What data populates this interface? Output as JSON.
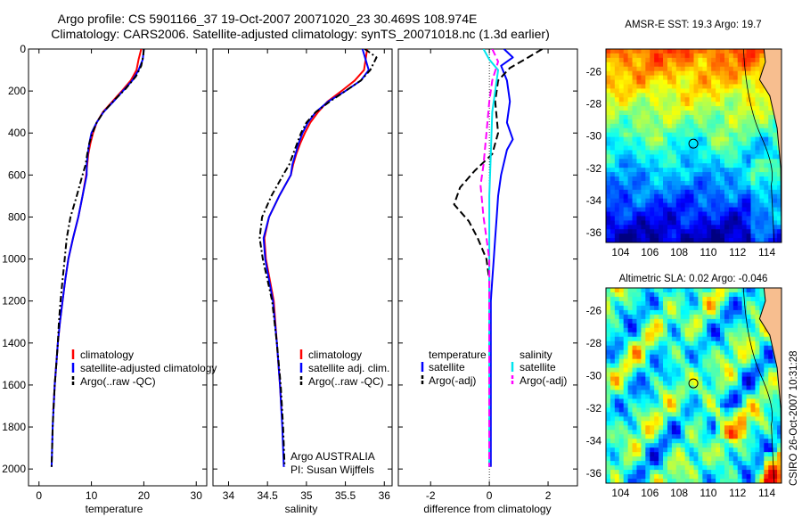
{
  "figure": {
    "title_line1": "Argo profile: CS 5901166_37 19-Oct-2007 20071020_23 30.469S 108.974E",
    "title_line2": "Climatology: CARS2006. Satellite-adjusted climatology: synTS_20071018.nc (1.3d earlier)",
    "credit": "Argo AUSTRALIA",
    "pi": "PI: Susan Wijffels",
    "stamp": "CSIRO 26-Oct-2007 10:31:28"
  },
  "colors": {
    "climatology": "#ff0000",
    "satellite": "#0000ff",
    "argo": "#000000",
    "sat_salinity": "#00e5ee",
    "argo_salinity": "#ff00ff"
  },
  "chart_data": [
    {
      "type": "line",
      "panel": "temperature",
      "xlabel": "temperature",
      "ylabel": "",
      "xlim": [
        -2,
        32
      ],
      "ylim": [
        2080,
        0
      ],
      "xticks": [
        "0",
        "10",
        "20",
        "30"
      ],
      "yticks": [
        "0",
        "200",
        "400",
        "600",
        "800",
        "1000",
        "1200",
        "1400",
        "1600",
        "1800",
        "2000"
      ],
      "legend": [
        "climatology",
        "satellite-adjusted climatology",
        "Argo(..raw -QC)"
      ],
      "series": [
        {
          "name": "climatology",
          "color": "#ff0000",
          "points": [
            [
              19.5,
              0
            ],
            [
              19.0,
              50
            ],
            [
              18.6,
              100
            ],
            [
              17.5,
              150
            ],
            [
              15.8,
              200
            ],
            [
              14.0,
              250
            ],
            [
              12.2,
              300
            ],
            [
              11.0,
              350
            ],
            [
              10.3,
              400
            ],
            [
              9.8,
              450
            ],
            [
              9.4,
              500
            ],
            [
              9.2,
              550
            ],
            [
              9.0,
              600
            ],
            [
              8.3,
              700
            ],
            [
              7.5,
              800
            ],
            [
              6.5,
              900
            ],
            [
              5.6,
              1000
            ],
            [
              5.0,
              1100
            ],
            [
              4.5,
              1200
            ],
            [
              4.0,
              1300
            ],
            [
              3.6,
              1400
            ],
            [
              3.3,
              1500
            ],
            [
              3.0,
              1600
            ],
            [
              2.8,
              1700
            ],
            [
              2.7,
              1720
            ]
          ]
        },
        {
          "name": "satellite-adjusted climatology",
          "color": "#0000ff",
          "points": [
            [
              20.0,
              0
            ],
            [
              19.8,
              50
            ],
            [
              19.0,
              100
            ],
            [
              17.8,
              150
            ],
            [
              16.0,
              200
            ],
            [
              14.2,
              250
            ],
            [
              12.3,
              300
            ],
            [
              11.0,
              350
            ],
            [
              10.0,
              400
            ],
            [
              9.6,
              450
            ],
            [
              9.3,
              500
            ],
            [
              9.1,
              550
            ],
            [
              9.1,
              600
            ],
            [
              8.3,
              700
            ],
            [
              7.5,
              800
            ],
            [
              6.5,
              900
            ],
            [
              5.6,
              1000
            ],
            [
              5.0,
              1100
            ],
            [
              4.5,
              1200
            ],
            [
              4.0,
              1300
            ],
            [
              3.6,
              1400
            ],
            [
              3.3,
              1500
            ],
            [
              3.0,
              1600
            ],
            [
              2.8,
              1700
            ],
            [
              2.6,
              1800
            ],
            [
              2.5,
              1900
            ],
            [
              2.4,
              1990
            ]
          ]
        },
        {
          "name": "Argo(..raw -QC)",
          "color": "#000000",
          "dash": "7,3,2,3",
          "points": [
            [
              20.0,
              0
            ],
            [
              19.9,
              30
            ],
            [
              19.5,
              80
            ],
            [
              18.5,
              130
            ],
            [
              16.5,
              190
            ],
            [
              14.5,
              240
            ],
            [
              12.3,
              300
            ],
            [
              11.0,
              350
            ],
            [
              10.2,
              400
            ],
            [
              9.6,
              450
            ],
            [
              9.2,
              500
            ],
            [
              8.9,
              550
            ],
            [
              8.3,
              600
            ],
            [
              7.2,
              700
            ],
            [
              6.0,
              800
            ],
            [
              5.3,
              900
            ],
            [
              4.9,
              1000
            ],
            [
              4.5,
              1100
            ],
            [
              4.1,
              1200
            ],
            [
              3.8,
              1300
            ],
            [
              3.6,
              1400
            ],
            [
              3.3,
              1500
            ],
            [
              3.0,
              1600
            ],
            [
              2.8,
              1700
            ],
            [
              2.6,
              1800
            ],
            [
              2.5,
              1900
            ],
            [
              2.4,
              1990
            ]
          ]
        }
      ]
    },
    {
      "type": "line",
      "panel": "salinity",
      "xlabel": "salinity",
      "ylabel": "",
      "xlim": [
        33.8,
        36.1
      ],
      "ylim": [
        2080,
        0
      ],
      "xticks": [
        "34",
        "34.5",
        "35",
        "35.5",
        "36"
      ],
      "yticks": [],
      "legend": [
        "climatology",
        "satellite adj. clim.",
        "Argo(..raw -QC)"
      ],
      "series": [
        {
          "name": "climatology",
          "color": "#ff0000",
          "points": [
            [
              35.78,
              0
            ],
            [
              35.76,
              50
            ],
            [
              35.74,
              100
            ],
            [
              35.62,
              150
            ],
            [
              35.45,
              200
            ],
            [
              35.27,
              250
            ],
            [
              35.15,
              300
            ],
            [
              35.05,
              350
            ],
            [
              34.98,
              400
            ],
            [
              34.92,
              450
            ],
            [
              34.87,
              500
            ],
            [
              34.83,
              550
            ],
            [
              34.8,
              600
            ],
            [
              34.65,
              700
            ],
            [
              34.52,
              800
            ],
            [
              34.46,
              900
            ],
            [
              34.48,
              1000
            ],
            [
              34.53,
              1100
            ],
            [
              34.58,
              1200
            ],
            [
              34.62,
              1400
            ],
            [
              34.66,
              1600
            ],
            [
              34.68,
              1720
            ]
          ]
        },
        {
          "name": "satellite adj. clim.",
          "color": "#0000ff",
          "points": [
            [
              35.72,
              0
            ],
            [
              35.76,
              50
            ],
            [
              35.8,
              100
            ],
            [
              35.7,
              150
            ],
            [
              35.5,
              200
            ],
            [
              35.28,
              250
            ],
            [
              35.12,
              300
            ],
            [
              35.02,
              350
            ],
            [
              34.95,
              400
            ],
            [
              34.9,
              450
            ],
            [
              34.86,
              500
            ],
            [
              34.82,
              550
            ],
            [
              34.8,
              600
            ],
            [
              34.65,
              700
            ],
            [
              34.52,
              800
            ],
            [
              34.45,
              900
            ],
            [
              34.47,
              1000
            ],
            [
              34.52,
              1100
            ],
            [
              34.57,
              1200
            ],
            [
              34.62,
              1400
            ],
            [
              34.66,
              1600
            ],
            [
              34.69,
              1800
            ],
            [
              34.71,
              1990
            ]
          ]
        },
        {
          "name": "Argo(..raw -QC)",
          "color": "#000000",
          "dash": "7,3,2,3",
          "points": [
            [
              35.75,
              0
            ],
            [
              35.9,
              40
            ],
            [
              35.82,
              100
            ],
            [
              35.7,
              150
            ],
            [
              35.5,
              200
            ],
            [
              35.3,
              250
            ],
            [
              35.12,
              300
            ],
            [
              35.0,
              350
            ],
            [
              34.93,
              400
            ],
            [
              34.88,
              450
            ],
            [
              34.83,
              500
            ],
            [
              34.78,
              550
            ],
            [
              34.7,
              600
            ],
            [
              34.55,
              700
            ],
            [
              34.43,
              800
            ],
            [
              34.4,
              900
            ],
            [
              34.44,
              1000
            ],
            [
              34.5,
              1100
            ],
            [
              34.56,
              1200
            ],
            [
              34.62,
              1400
            ],
            [
              34.67,
              1600
            ],
            [
              34.7,
              1800
            ],
            [
              34.72,
              1990
            ]
          ]
        }
      ]
    },
    {
      "type": "line",
      "panel": "difference",
      "xlabel": "difference from climatology",
      "ylabel": "",
      "xlim": [
        -3.1,
        3.0
      ],
      "ylim": [
        2080,
        0
      ],
      "xticks": [
        "-2",
        "0",
        "2"
      ],
      "yticks": [],
      "legend_titles": [
        "temperature",
        "salinity"
      ],
      "legend": [
        "satellite",
        "Argo(-adj)",
        "satellite",
        "Argo(-adj)"
      ],
      "series": [
        {
          "name": "satellite",
          "group": "temperature",
          "color": "#0000ff",
          "points": [
            [
              0.5,
              0
            ],
            [
              0.8,
              40
            ],
            [
              0.4,
              80
            ],
            [
              0.6,
              150
            ],
            [
              0.7,
              250
            ],
            [
              0.6,
              350
            ],
            [
              0.8,
              430
            ],
            [
              0.6,
              480
            ],
            [
              0.4,
              600
            ],
            [
              0.3,
              700
            ],
            [
              0.25,
              800
            ],
            [
              0.2,
              900
            ],
            [
              0.15,
              1000
            ],
            [
              0.1,
              1100
            ],
            [
              0.05,
              1200
            ],
            [
              0.05,
              1500
            ],
            [
              0.05,
              1990
            ]
          ]
        },
        {
          "name": "Argo(-adj)",
          "group": "temperature",
          "color": "#000000",
          "dash": "8,4",
          "points": [
            [
              1.8,
              0
            ],
            [
              1.2,
              50
            ],
            [
              0.7,
              90
            ],
            [
              0.3,
              150
            ],
            [
              0.2,
              250
            ],
            [
              0.3,
              400
            ],
            [
              0.1,
              500
            ],
            [
              -0.5,
              580
            ],
            [
              -1.0,
              660
            ],
            [
              -1.2,
              740
            ],
            [
              -0.7,
              820
            ],
            [
              -0.4,
              900
            ],
            [
              -0.1,
              1000
            ],
            [
              0.0,
              1100
            ],
            [
              0.0,
              1990
            ]
          ]
        },
        {
          "name": "satellite",
          "group": "salinity",
          "color": "#00e5ee",
          "points": [
            [
              -0.2,
              0
            ],
            [
              0.0,
              50
            ],
            [
              0.3,
              100
            ],
            [
              0.2,
              200
            ],
            [
              0.1,
              300
            ],
            [
              0.05,
              500
            ],
            [
              0.0,
              700
            ],
            [
              0.0,
              1000
            ],
            [
              0.0,
              1400
            ],
            [
              0.0,
              1990
            ]
          ]
        },
        {
          "name": "Argo(-adj)",
          "group": "salinity",
          "color": "#ff00ff",
          "dash": "8,4",
          "points": [
            [
              0.1,
              0
            ],
            [
              0.3,
              60
            ],
            [
              0.1,
              150
            ],
            [
              0.0,
              250
            ],
            [
              -0.1,
              400
            ],
            [
              -0.2,
              550
            ],
            [
              -0.3,
              650
            ],
            [
              -0.2,
              800
            ],
            [
              -0.1,
              900
            ],
            [
              0.0,
              1000
            ],
            [
              0.0,
              1990
            ]
          ]
        }
      ]
    },
    {
      "type": "heatmap",
      "panel": "sst_map",
      "title": "AMSR-E SST: 19.3 Argo: 19.7",
      "xlim": [
        103,
        115
      ],
      "ylim": [
        -36.6,
        -24.6
      ],
      "xticks": [
        "104",
        "106",
        "108",
        "110",
        "112",
        "114"
      ],
      "yticks": [
        "-26",
        "-28",
        "-30",
        "-32",
        "-34",
        "-36"
      ],
      "marker": [
        108.974,
        -30.469
      ]
    },
    {
      "type": "heatmap",
      "panel": "sla_map",
      "title": "Altimetric SLA: 0.02 Argo: -0.046",
      "xlim": [
        103,
        115
      ],
      "ylim": [
        -36.6,
        -24.6
      ],
      "xticks": [
        "104",
        "106",
        "108",
        "110",
        "112",
        "114"
      ],
      "yticks": [
        "-26",
        "-28",
        "-30",
        "-32",
        "-34",
        "-36"
      ],
      "marker": [
        108.974,
        -30.469
      ]
    }
  ]
}
